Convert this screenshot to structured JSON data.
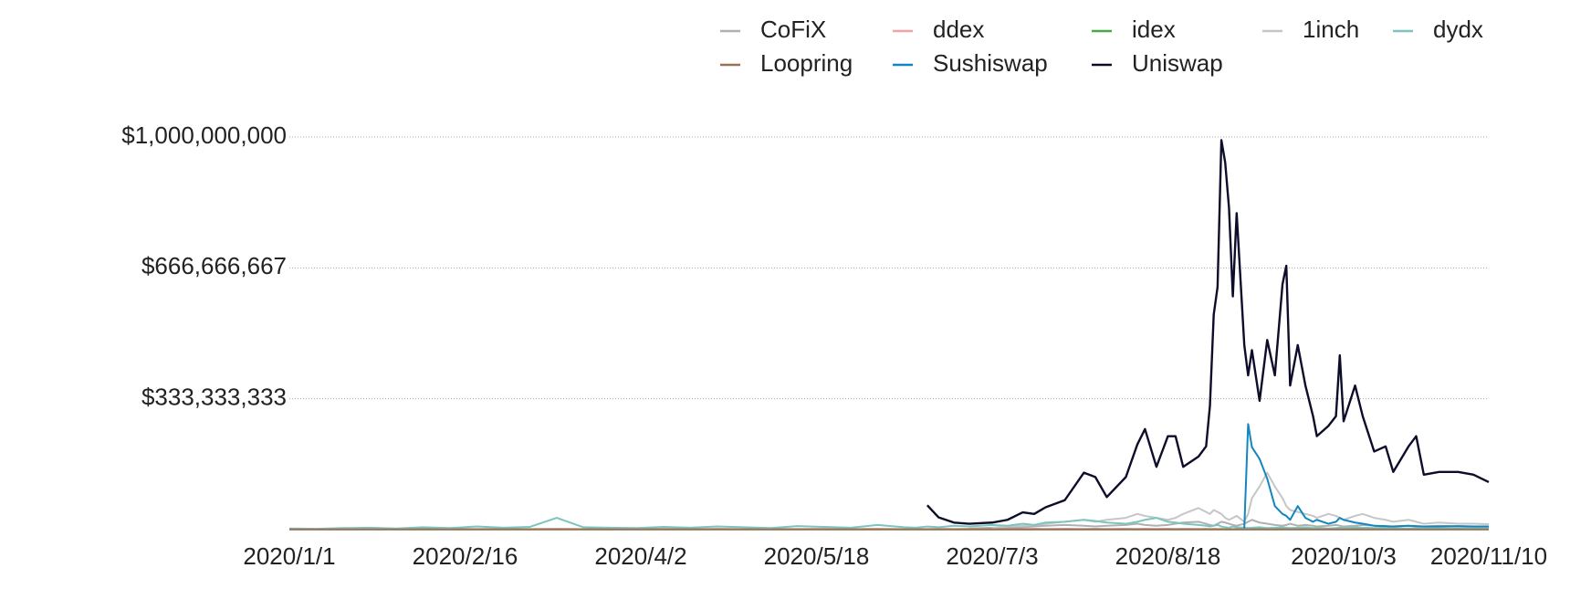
{
  "chart_data": {
    "type": "line",
    "x": [
      "2020/1/1",
      "2020/1/8",
      "2020/1/15",
      "2020/1/22",
      "2020/1/29",
      "2020/2/5",
      "2020/2/12",
      "2020/2/19",
      "2020/2/26",
      "2020/3/4",
      "2020/3/11",
      "2020/3/18",
      "2020/3/25",
      "2020/4/1",
      "2020/4/8",
      "2020/4/15",
      "2020/4/22",
      "2020/4/29",
      "2020/5/6",
      "2020/5/13",
      "2020/5/20",
      "2020/5/27",
      "2020/6/3",
      "2020/6/10",
      "2020/6/13",
      "2020/6/16",
      "2020/6/19",
      "2020/6/23",
      "2020/6/27",
      "2020/7/3",
      "2020/7/7",
      "2020/7/11",
      "2020/7/14",
      "2020/7/17",
      "2020/7/22",
      "2020/7/27",
      "2020/7/30",
      "2020/8/2",
      "2020/8/7",
      "2020/8/10",
      "2020/8/12",
      "2020/8/15",
      "2020/8/18",
      "2020/8/20",
      "2020/8/22",
      "2020/8/26",
      "2020/8/28",
      "2020/8/29",
      "2020/8/30",
      "2020/8/31",
      "2020/9/1",
      "2020/9/2",
      "2020/9/3",
      "2020/9/4",
      "2020/9/5",
      "2020/9/7",
      "2020/9/8",
      "2020/9/9",
      "2020/9/11",
      "2020/9/13",
      "2020/9/15",
      "2020/9/17",
      "2020/9/18",
      "2020/9/19",
      "2020/9/21",
      "2020/9/23",
      "2020/9/25",
      "2020/9/26",
      "2020/9/29",
      "2020/10/1",
      "2020/10/2",
      "2020/10/3",
      "2020/10/6",
      "2020/10/8",
      "2020/10/11",
      "2020/10/14",
      "2020/10/16",
      "2020/10/20",
      "2020/10/22",
      "2020/10/24",
      "2020/10/28",
      "2020/11/2",
      "2020/11/6",
      "2020/11/10"
    ],
    "xlim": [
      "2020/1/1",
      "2020/11/10"
    ],
    "xticks": [
      "2020/1/1",
      "2020/2/16",
      "2020/4/2",
      "2020/5/18",
      "2020/7/3",
      "2020/8/18",
      "2020/10/3",
      "2020/11/10"
    ],
    "ylim": [
      0,
      1000000000
    ],
    "yticks": [
      {
        "value": 333333333,
        "label": "$333,333,333"
      },
      {
        "value": 666666667,
        "label": "$666,666,667"
      },
      {
        "value": 1000000000,
        "label": "$1,000,000,000"
      }
    ],
    "grid": true,
    "legend": "top",
    "series": [
      {
        "name": "CoFiX",
        "color": "#b0b0b0",
        "values": [
          null,
          null,
          null,
          null,
          null,
          null,
          null,
          null,
          null,
          null,
          null,
          null,
          null,
          null,
          null,
          null,
          null,
          null,
          null,
          null,
          null,
          null,
          null,
          null,
          null,
          null,
          null,
          null,
          3000000.0,
          5000000.0,
          5000000.0,
          6000000.0,
          8000000.0,
          10000000.0,
          12000000.0,
          10000000.0,
          8000000.0,
          10000000.0,
          12000000.0,
          15000000.0,
          12000000.0,
          10000000.0,
          12000000.0,
          15000000.0,
          18000000.0,
          20000000.0,
          15000000.0,
          12000000.0,
          10000000.0,
          15000000.0,
          20000000.0,
          18000000.0,
          15000000.0,
          12000000.0,
          10000000.0,
          15000000.0,
          20000000.0,
          25000000.0,
          18000000.0,
          15000000.0,
          12000000.0,
          10000000.0,
          12000000.0,
          15000000.0,
          10000000.0,
          12000000.0,
          10000000.0,
          8000000.0,
          10000000.0,
          12000000.0,
          10000000.0,
          8000000.0,
          10000000.0,
          12000000.0,
          10000000.0,
          8000000.0,
          8000000.0,
          10000000.0,
          8000000.0,
          8000000.0,
          10000000.0,
          8000000.0,
          8000000.0,
          8000000.0
        ]
      },
      {
        "name": "ddex",
        "color": "#f4a3a3",
        "values": [
          2000000.0,
          1500000.0,
          2000000.0,
          1500000.0,
          2000000.0,
          1500000.0,
          2000000.0,
          1500000.0,
          2000000.0,
          1500000.0,
          2000000.0,
          1500000.0,
          2000000.0,
          1500000.0,
          2000000.0,
          1500000.0,
          2000000.0,
          1500000.0,
          2000000.0,
          1500000.0,
          2000000.0,
          1500000.0,
          2000000.0,
          1500000.0,
          2000000.0,
          1500000.0,
          2000000.0,
          1500000.0,
          2000000.0,
          1500000.0,
          2000000.0,
          1500000.0,
          2000000.0,
          1500000.0,
          2000000.0,
          1500000.0,
          2000000.0,
          1500000.0,
          2000000.0,
          1500000.0,
          2000000.0,
          1500000.0,
          2000000.0,
          1500000.0,
          2000000.0,
          1500000.0,
          2000000.0,
          1500000.0,
          2000000.0,
          1500000.0,
          2000000.0,
          1500000.0,
          2000000.0,
          1500000.0,
          2000000.0,
          1500000.0,
          2000000.0,
          1500000.0,
          2000000.0,
          1500000.0,
          2000000.0,
          1500000.0,
          2000000.0,
          1500000.0,
          2000000.0,
          1500000.0,
          2000000.0,
          1500000.0,
          2000000.0,
          1500000.0,
          2000000.0,
          1500000.0,
          2000000.0,
          1500000.0,
          2000000.0,
          1500000.0,
          2000000.0,
          1500000.0,
          2000000.0,
          1500000.0,
          2000000.0,
          1500000.0,
          2000000.0,
          1500000.0
        ]
      },
      {
        "name": "idex",
        "color": "#4aa84a",
        "values": [
          1000000.0,
          1000000.0,
          1000000.0,
          1000000.0,
          1000000.0,
          1000000.0,
          1000000.0,
          1000000.0,
          1000000.0,
          1000000.0,
          1000000.0,
          1000000.0,
          1000000.0,
          1000000.0,
          1000000.0,
          1000000.0,
          1000000.0,
          1000000.0,
          1000000.0,
          1000000.0,
          1000000.0,
          1000000.0,
          1000000.0,
          1000000.0,
          1000000.0,
          1000000.0,
          1000000.0,
          1000000.0,
          1000000.0,
          1000000.0,
          1000000.0,
          1000000.0,
          1000000.0,
          1000000.0,
          1000000.0,
          1000000.0,
          1000000.0,
          1000000.0,
          1000000.0,
          1000000.0,
          1000000.0,
          1000000.0,
          1000000.0,
          1000000.0,
          1000000.0,
          1000000.0,
          1000000.0,
          1000000.0,
          1000000.0,
          1000000.0,
          1000000.0,
          1000000.0,
          1000000.0,
          1000000.0,
          1000000.0,
          1000000.0,
          1000000.0,
          1000000.0,
          1000000.0,
          1000000.0,
          1000000.0,
          1000000.0,
          1000000.0,
          1000000.0,
          1000000.0,
          1000000.0,
          1000000.0,
          1000000.0,
          1000000.0,
          1000000.0,
          1000000.0,
          1000000.0,
          1000000.0,
          1000000.0,
          1000000.0,
          1000000.0,
          1000000.0,
          1000000.0,
          1000000.0,
          1000000.0,
          1000000.0,
          1000000.0,
          1000000.0,
          1000000.0
        ]
      },
      {
        "name": "1inch",
        "color": "#c6c6c6",
        "values": [
          null,
          null,
          null,
          null,
          null,
          null,
          null,
          null,
          null,
          null,
          null,
          null,
          null,
          null,
          null,
          null,
          null,
          null,
          null,
          null,
          null,
          null,
          null,
          null,
          null,
          null,
          null,
          null,
          null,
          5000000.0,
          8000000.0,
          10000000.0,
          12000000.0,
          15000000.0,
          20000000.0,
          25000000.0,
          20000000.0,
          25000000.0,
          30000000.0,
          40000000.0,
          35000000.0,
          30000000.0,
          25000000.0,
          30000000.0,
          40000000.0,
          55000000.0,
          45000000.0,
          40000000.0,
          50000000.0,
          45000000.0,
          40000000.0,
          30000000.0,
          25000000.0,
          30000000.0,
          35000000.0,
          20000000.0,
          40000000.0,
          80000000.0,
          110000000.0,
          145000000.0,
          110000000.0,
          80000000.0,
          60000000.0,
          50000000.0,
          45000000.0,
          40000000.0,
          35000000.0,
          30000000.0,
          40000000.0,
          35000000.0,
          30000000.0,
          25000000.0,
          35000000.0,
          40000000.0,
          30000000.0,
          25000000.0,
          20000000.0,
          25000000.0,
          20000000.0,
          15000000.0,
          18000000.0,
          15000000.0,
          15000000.0,
          14000000.0
        ]
      },
      {
        "name": "dydx",
        "color": "#7cc4bd",
        "values": [
          3000000.0,
          2000000.0,
          4000000.0,
          5000000.0,
          3000000.0,
          6000000.0,
          4000000.0,
          8000000.0,
          5000000.0,
          7000000.0,
          30000000.0,
          6000000.0,
          5000000.0,
          4000000.0,
          7000000.0,
          5000000.0,
          8000000.0,
          6000000.0,
          4000000.0,
          9000000.0,
          7000000.0,
          5000000.0,
          12000000.0,
          6000000.0,
          5000000.0,
          8000000.0,
          6000000.0,
          10000000.0,
          8000000.0,
          12000000.0,
          10000000.0,
          15000000.0,
          12000000.0,
          18000000.0,
          20000000.0,
          25000000.0,
          22000000.0,
          18000000.0,
          15000000.0,
          20000000.0,
          25000000.0,
          30000000.0,
          20000000.0,
          18000000.0,
          15000000.0,
          12000000.0,
          10000000.0,
          8000000.0,
          10000000.0,
          12000000.0,
          8000000.0,
          6000000.0,
          5000000.0,
          8000000.0,
          6000000.0,
          5000000.0,
          4000000.0,
          5000000.0,
          6000000.0,
          4000000.0,
          5000000.0,
          6000000.0,
          5000000.0,
          4000000.0,
          5000000.0,
          6000000.0,
          4000000.0,
          5000000.0,
          3000000.0,
          4000000.0,
          5000000.0,
          4000000.0,
          6000000.0,
          5000000.0,
          4000000.0,
          5000000.0,
          4000000.0,
          3000000.0,
          4000000.0,
          5000000.0,
          4000000.0,
          3000000.0,
          4000000.0,
          4000000.0
        ]
      },
      {
        "name": "Loopring",
        "color": "#9b6e55",
        "values": [
          500000.0,
          500000.0,
          500000.0,
          500000.0,
          500000.0,
          500000.0,
          500000.0,
          500000.0,
          500000.0,
          500000.0,
          500000.0,
          500000.0,
          500000.0,
          500000.0,
          500000.0,
          500000.0,
          500000.0,
          500000.0,
          500000.0,
          500000.0,
          500000.0,
          500000.0,
          500000.0,
          500000.0,
          500000.0,
          500000.0,
          500000.0,
          500000.0,
          500000.0,
          500000.0,
          500000.0,
          500000.0,
          500000.0,
          500000.0,
          500000.0,
          500000.0,
          500000.0,
          500000.0,
          500000.0,
          500000.0,
          500000.0,
          500000.0,
          500000.0,
          500000.0,
          500000.0,
          500000.0,
          500000.0,
          500000.0,
          500000.0,
          500000.0,
          500000.0,
          500000.0,
          500000.0,
          500000.0,
          500000.0,
          500000.0,
          500000.0,
          500000.0,
          500000.0,
          500000.0,
          500000.0,
          500000.0,
          500000.0,
          500000.0,
          500000.0,
          500000.0,
          500000.0,
          500000.0,
          500000.0,
          500000.0,
          500000.0,
          500000.0,
          500000.0,
          500000.0,
          500000.0,
          500000.0,
          500000.0,
          500000.0,
          500000.0,
          500000.0,
          500000.0,
          500000.0,
          500000.0,
          500000.0
        ]
      },
      {
        "name": "Sushiswap",
        "color": "#1386bf",
        "values": [
          null,
          null,
          null,
          null,
          null,
          null,
          null,
          null,
          null,
          null,
          null,
          null,
          null,
          null,
          null,
          null,
          null,
          null,
          null,
          null,
          null,
          null,
          null,
          null,
          null,
          null,
          null,
          null,
          null,
          null,
          null,
          null,
          null,
          null,
          null,
          null,
          null,
          null,
          null,
          null,
          null,
          null,
          null,
          null,
          null,
          null,
          null,
          null,
          null,
          null,
          null,
          null,
          null,
          null,
          null,
          4000000.0,
          269000000.0,
          210000000.0,
          180000000.0,
          130000000.0,
          60000000.0,
          40000000.0,
          35000000.0,
          25000000.0,
          60000000.0,
          30000000.0,
          20000000.0,
          25000000.0,
          15000000.0,
          20000000.0,
          30000000.0,
          25000000.0,
          18000000.0,
          15000000.0,
          10000000.0,
          9000000.0,
          8000000.0,
          10000000.0,
          9000000.0,
          8000000.0,
          8000000.0,
          9000000.0,
          8000000.0,
          8000000.0
        ]
      },
      {
        "name": "Uniswap",
        "color": "#0d0d2b",
        "values": [
          null,
          null,
          null,
          null,
          null,
          null,
          null,
          null,
          null,
          null,
          null,
          null,
          null,
          null,
          null,
          null,
          null,
          null,
          null,
          null,
          null,
          null,
          null,
          null,
          null,
          62000000.0,
          31000000.0,
          18000000.0,
          15000000.0,
          18000000.0,
          25000000.0,
          44000000.0,
          40000000.0,
          57000000.0,
          75000000.0,
          145000000.0,
          134000000.0,
          83000000.0,
          134000000.0,
          217000000.0,
          256000000.0,
          160000000.0,
          238000000.0,
          238000000.0,
          160000000.0,
          186000000.0,
          212000000.0,
          315000000.0,
          548000000.0,
          618000000.0,
          992000000.0,
          935000000.0,
          819000000.0,
          594000000.0,
          806000000.0,
          470000000.0,
          393000000.0,
          457000000.0,
          328000000.0,
          483000000.0,
          393000000.0,
          625000000.0,
          672000000.0,
          367000000.0,
          470000000.0,
          367000000.0,
          289000000.0,
          238000000.0,
          264000000.0,
          289000000.0,
          444000000.0,
          276000000.0,
          367000000.0,
          289000000.0,
          199000000.0,
          212000000.0,
          147000000.0,
          212000000.0,
          238000000.0,
          140000000.0,
          147000000.0,
          147000000.0,
          140000000.0,
          121000000.0
        ]
      }
    ]
  }
}
